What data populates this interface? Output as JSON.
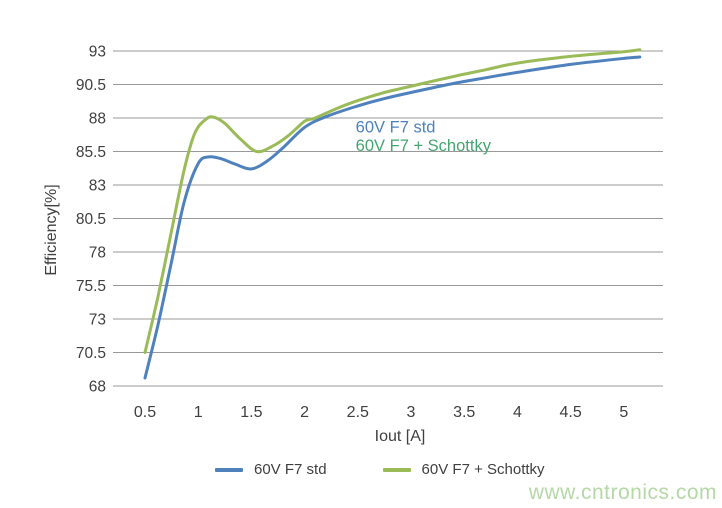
{
  "watermark": {
    "text": "www.cntronics.com"
  },
  "chart_data": {
    "type": "line",
    "title": "",
    "xlabel": "Iout [A]",
    "ylabel": "Efficiency[%]",
    "xlim": [
      0.2,
      5.4
    ],
    "ylim": [
      68,
      93
    ],
    "grid": "horizontal-only",
    "legend_position": "bottom",
    "x_ticks": [
      {
        "value": 0.5,
        "label": "0.5"
      },
      {
        "value": 1.0,
        "label": "1"
      },
      {
        "value": 1.5,
        "label": "1.5"
      },
      {
        "value": 2.0,
        "label": "2"
      },
      {
        "value": 2.5,
        "label": "2.5"
      },
      {
        "value": 3.0,
        "label": "3"
      },
      {
        "value": 3.5,
        "label": "3.5"
      },
      {
        "value": 4.0,
        "label": "4"
      },
      {
        "value": 4.5,
        "label": "4.5"
      },
      {
        "value": 5.0,
        "label": "5"
      }
    ],
    "y_ticks": [
      {
        "value": 68,
        "label": "68"
      },
      {
        "value": 70.5,
        "label": "70.5"
      },
      {
        "value": 73,
        "label": "73"
      },
      {
        "value": 75.5,
        "label": "75.5"
      },
      {
        "value": 78,
        "label": "78"
      },
      {
        "value": 80.5,
        "label": "80.5"
      },
      {
        "value": 83,
        "label": "83"
      },
      {
        "value": 85.5,
        "label": "85.5"
      },
      {
        "value": 88,
        "label": "88"
      },
      {
        "value": 90.5,
        "label": "90.5"
      },
      {
        "value": 93,
        "label": "93"
      }
    ],
    "series": [
      {
        "name": "60V F7 std",
        "color": "#4f81bd",
        "x": [
          0.5,
          0.62,
          0.75,
          0.87,
          1.0,
          1.1,
          1.22,
          1.35,
          1.5,
          1.65,
          1.8,
          2.0,
          2.2,
          2.5,
          2.75,
          3.0,
          3.35,
          3.7,
          4.0,
          4.5,
          5.0,
          5.15
        ],
        "y": [
          68.6,
          72.5,
          77.3,
          81.8,
          84.6,
          85.1,
          84.95,
          84.55,
          84.2,
          84.8,
          85.8,
          87.3,
          88.1,
          88.9,
          89.45,
          89.9,
          90.5,
          91.0,
          91.4,
          92.0,
          92.45,
          92.55
        ]
      },
      {
        "name": "60V F7 + Schottky",
        "color": "#9bbb59",
        "x": [
          0.5,
          0.62,
          0.75,
          0.87,
          0.97,
          1.08,
          1.15,
          1.25,
          1.4,
          1.55,
          1.7,
          1.85,
          2.0,
          2.1,
          2.3,
          2.5,
          2.75,
          3.07,
          3.4,
          3.7,
          4.0,
          4.5,
          5.0,
          5.15
        ],
        "y": [
          70.5,
          74.6,
          79.6,
          84.2,
          86.9,
          87.95,
          88.05,
          87.6,
          86.4,
          85.5,
          85.9,
          86.7,
          87.75,
          88.0,
          88.7,
          89.3,
          89.9,
          90.5,
          91.1,
          91.6,
          92.1,
          92.6,
          92.95,
          93.1
        ]
      }
    ],
    "annotations": [
      {
        "text": "60V F7 std",
        "color": "#4f81bd",
        "x": 2.48,
        "y": 86.9
      },
      {
        "text": "60V F7 + Schottky",
        "color": "#45a571",
        "x": 2.48,
        "y": 85.55
      }
    ],
    "legend": [
      {
        "label": "60V F7 std",
        "color": "#4f81bd"
      },
      {
        "label": "60V F7 + Schottky",
        "color": "#9bbb59"
      }
    ],
    "colors": {
      "gridline": "#999999",
      "tick_text": "#404040",
      "watermark": "#b5d8a6"
    }
  }
}
